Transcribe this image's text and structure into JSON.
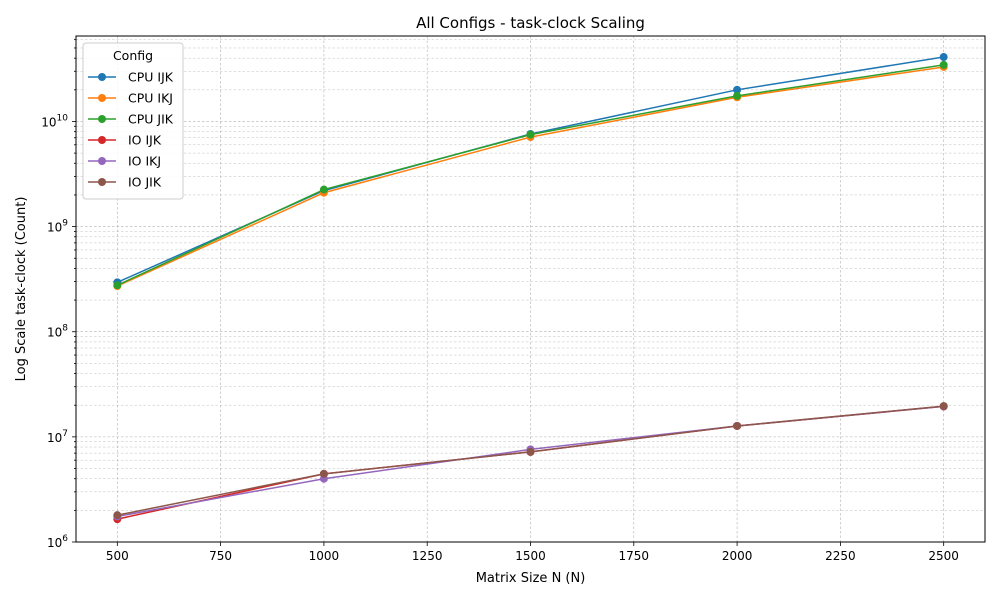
{
  "chart_data": {
    "type": "line",
    "title": "All Configs - task-clock Scaling",
    "xlabel": "Matrix Size N (N)",
    "ylabel": "Log Scale task-clock (Count)",
    "x_scale": "linear",
    "y_scale": "log",
    "xlim": [
      400,
      2600
    ],
    "ylim": [
      1000000,
      65000000000
    ],
    "x_ticks": [
      500,
      750,
      1000,
      1250,
      1500,
      1750,
      2000,
      2250,
      2500
    ],
    "y_ticks": [
      1000000,
      10000000,
      100000000,
      1000000000,
      10000000000
    ],
    "y_tick_labels": [
      {
        "base": "10",
        "exp": "6"
      },
      {
        "base": "10",
        "exp": "7"
      },
      {
        "base": "10",
        "exp": "8"
      },
      {
        "base": "10",
        "exp": "9"
      },
      {
        "base": "10",
        "exp": "10"
      }
    ],
    "grid": "major and minor, dashed",
    "legend": {
      "title": "Config",
      "placement": "top-left"
    },
    "x": [
      500,
      1000,
      1500,
      2000,
      2500
    ],
    "series": [
      {
        "name": "CPU IJK",
        "color": "#1f77b4",
        "values": [
          295000000,
          2200000000,
          7600000000,
          20000000000,
          41000000000
        ]
      },
      {
        "name": "CPU IKJ",
        "color": "#ff7f0e",
        "values": [
          272000000,
          2100000000,
          7100000000,
          17000000000,
          33000000000
        ]
      },
      {
        "name": "CPU JIK",
        "color": "#2ca02c",
        "values": [
          277000000,
          2250000000,
          7500000000,
          17500000000,
          34500000000
        ]
      },
      {
        "name": "IO IJK",
        "color": "#d62728",
        "values": [
          1650000,
          4450000,
          7200000,
          12700000,
          19500000
        ]
      },
      {
        "name": "IO IKJ",
        "color": "#9467bd",
        "values": [
          1750000,
          4000000,
          7600000,
          12700000,
          19500000
        ]
      },
      {
        "name": "IO JIK",
        "color": "#8c564b",
        "values": [
          1800000,
          4450000,
          7200000,
          12700000,
          19600000
        ]
      }
    ]
  }
}
